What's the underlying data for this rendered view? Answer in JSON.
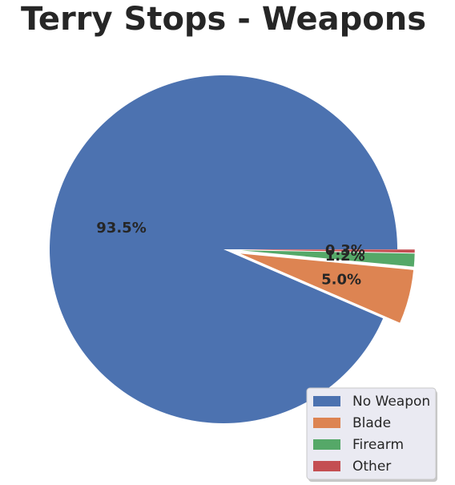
{
  "chart_data": {
    "type": "pie",
    "title": "Terry Stops - Weapons",
    "categories": [
      "No Weapon",
      "Blade",
      "Firearm",
      "Other"
    ],
    "values": [
      93.5,
      5.0,
      1.2,
      0.3
    ],
    "labels": [
      "93.5%",
      "5.0%",
      "1.2%",
      "0.3%"
    ],
    "exploded": [
      false,
      true,
      true,
      true
    ],
    "colors": [
      "#4c72b0",
      "#dd8452",
      "#55a868",
      "#c44e52"
    ],
    "legend": {
      "entries": [
        "No Weapon",
        "Blade",
        "Firearm",
        "Other"
      ],
      "placement": "lower-right"
    }
  }
}
